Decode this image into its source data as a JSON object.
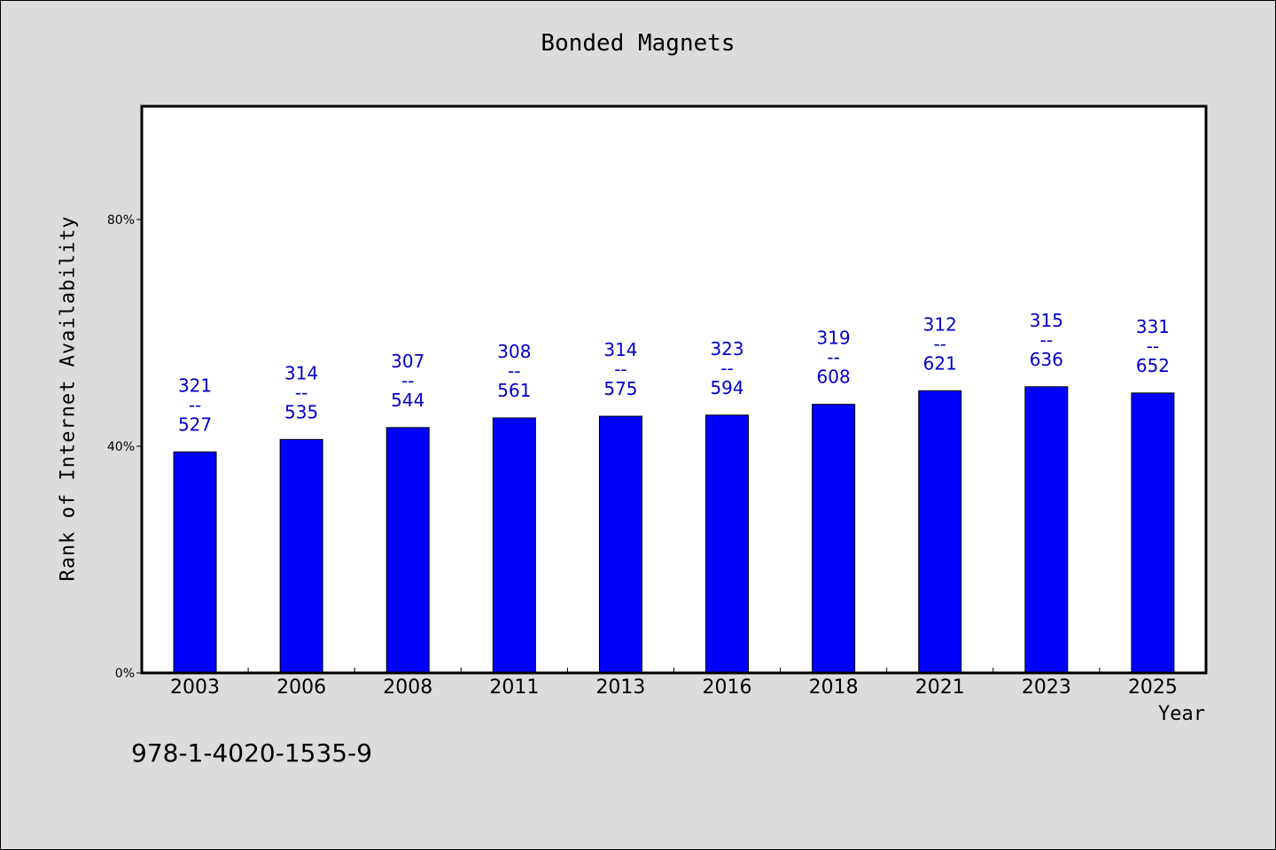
{
  "chart_data": {
    "type": "bar",
    "title": "Bonded Magnets",
    "xlabel": "Year",
    "ylabel": "Rank of Internet Availability",
    "ylim": [
      0,
      100
    ],
    "yticks": [
      "0%",
      "40%",
      "80%"
    ],
    "ytick_values": [
      0,
      40,
      80
    ],
    "categories": [
      "2003",
      "2006",
      "2008",
      "2011",
      "2013",
      "2016",
      "2018",
      "2021",
      "2023",
      "2025"
    ],
    "values": [
      39,
      41.2,
      43.3,
      45,
      45.3,
      45.5,
      47.4,
      49.8,
      50.5,
      49.4
    ],
    "labels": [
      {
        "top": "321",
        "mid": "--",
        "bottom": "527"
      },
      {
        "top": "314",
        "mid": "--",
        "bottom": "535"
      },
      {
        "top": "307",
        "mid": "--",
        "bottom": "544"
      },
      {
        "top": "308",
        "mid": "--",
        "bottom": "561"
      },
      {
        "top": "314",
        "mid": "--",
        "bottom": "575"
      },
      {
        "top": "323",
        "mid": "--",
        "bottom": "594"
      },
      {
        "top": "319",
        "mid": "--",
        "bottom": "608"
      },
      {
        "top": "312",
        "mid": "--",
        "bottom": "621"
      },
      {
        "top": "315",
        "mid": "--",
        "bottom": "636"
      },
      {
        "top": "331",
        "mid": "--",
        "bottom": "652"
      }
    ],
    "bar_color": "#0000ff",
    "label_color": "#0000cc",
    "grid": false
  },
  "footnote": "978-1-4020-1535-9"
}
